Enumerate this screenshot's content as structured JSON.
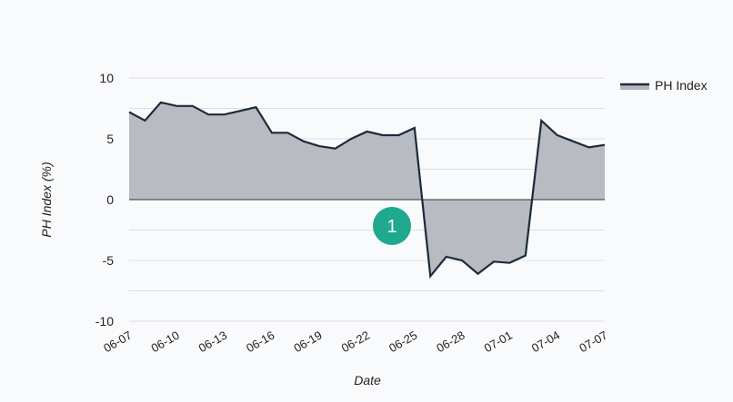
{
  "chart_data": {
    "type": "area",
    "title": "",
    "xlabel": "Date",
    "ylabel": "PH Index (%)",
    "ylim": [
      -10,
      10
    ],
    "y_ticks": [
      "10",
      "5",
      "0",
      "-5",
      "-10"
    ],
    "y_tick_values": [
      10,
      5,
      0,
      -5,
      -10
    ],
    "x_tick_labels": [
      "06-07",
      "06-10",
      "06-13",
      "06-16",
      "06-19",
      "06-22",
      "06-25",
      "06-28",
      "07-01",
      "07-04",
      "07-07"
    ],
    "grid": true,
    "legend": {
      "position": "top-right"
    },
    "series": [
      {
        "name": "PH Index",
        "color": "#1c2b3a",
        "fill": "#b4b7bf",
        "x": [
          "06-07",
          "06-08",
          "06-09",
          "06-10",
          "06-11",
          "06-12",
          "06-13",
          "06-14",
          "06-15",
          "06-16",
          "06-17",
          "06-18",
          "06-19",
          "06-20",
          "06-21",
          "06-22",
          "06-23",
          "06-24",
          "06-25",
          "06-26",
          "06-27",
          "06-28",
          "06-29",
          "06-30",
          "07-01",
          "07-02",
          "07-03",
          "07-04",
          "07-05",
          "07-06",
          "07-07"
        ],
        "values": [
          7.2,
          6.5,
          8.0,
          7.7,
          7.7,
          7.0,
          7.0,
          7.3,
          7.6,
          5.5,
          5.5,
          4.8,
          4.4,
          4.2,
          5.0,
          5.6,
          5.3,
          5.3,
          5.9,
          -6.3,
          -4.7,
          -5.0,
          -6.1,
          -5.1,
          -5.2,
          -4.6,
          6.5,
          5.3,
          4.8,
          4.3,
          4.5
        ]
      }
    ],
    "annotations": [
      {
        "label": "1",
        "color": "#1fa98e"
      }
    ]
  }
}
